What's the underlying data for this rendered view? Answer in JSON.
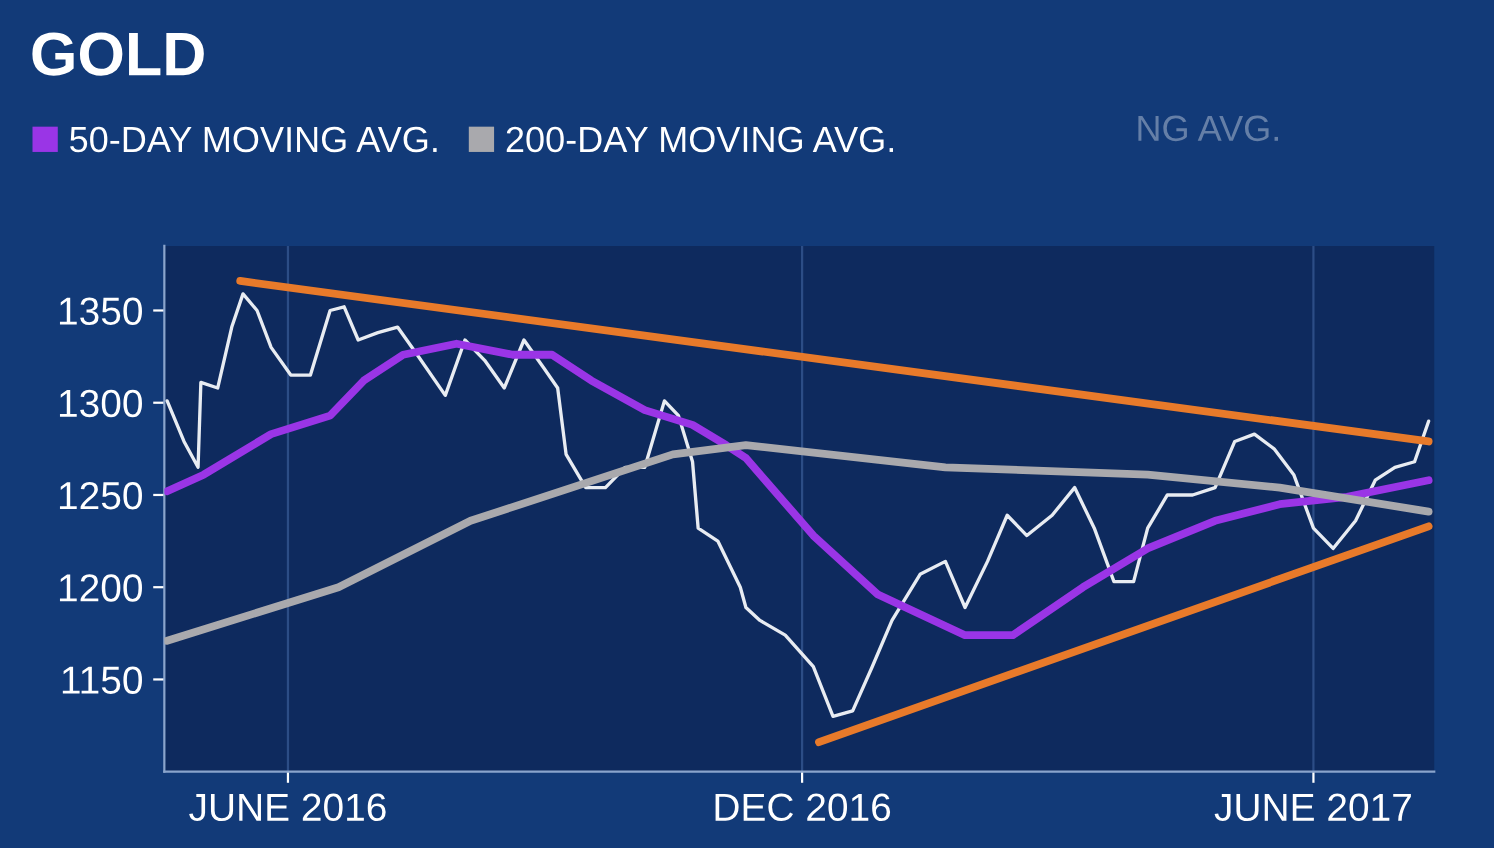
{
  "chart_data": {
    "type": "line",
    "title": "GOLD",
    "annotations": [
      "NG AVG."
    ],
    "legend": "top",
    "grid": "x",
    "marker": "none",
    "line_style": "solid",
    "xlim": [
      "2016-04-18",
      "2017-07-14"
    ],
    "ylim": [
      1100,
      1385
    ],
    "xticks": [
      {
        "value": "2016-06-01",
        "label": "JUNE 2016"
      },
      {
        "value": "2016-12-01",
        "label": "DEC 2016"
      },
      {
        "value": "2017-06-01",
        "label": "JUNE 2017"
      }
    ],
    "yticks": [
      1150,
      1200,
      1250,
      1300,
      1350
    ],
    "series": [
      {
        "color": "#e8ecf2",
        "x": [
          "2016-04-19",
          "2016-04-25",
          "2016-04-30",
          "2016-05-01",
          "2016-05-07",
          "2016-05-12",
          "2016-05-16",
          "2016-05-21",
          "2016-05-26",
          "2016-06-02",
          "2016-06-09",
          "2016-06-16",
          "2016-06-21",
          "2016-06-26",
          "2016-07-03",
          "2016-07-10",
          "2016-07-17",
          "2016-07-27",
          "2016-08-03",
          "2016-08-10",
          "2016-08-17",
          "2016-08-24",
          "2016-08-31",
          "2016-09-05",
          "2016-09-08",
          "2016-09-15",
          "2016-09-22",
          "2016-09-29",
          "2016-10-06",
          "2016-10-13",
          "2016-10-18",
          "2016-10-23",
          "2016-10-25",
          "2016-11-01",
          "2016-11-09",
          "2016-11-11",
          "2016-11-16",
          "2016-11-25",
          "2016-12-05",
          "2016-12-12",
          "2016-12-19",
          "2016-12-26",
          "2017-01-02",
          "2017-01-12",
          "2017-01-21",
          "2017-01-28",
          "2017-02-05",
          "2017-02-12",
          "2017-02-19",
          "2017-02-28",
          "2017-03-08",
          "2017-03-15",
          "2017-03-22",
          "2017-03-29",
          "2017-04-03",
          "2017-04-10",
          "2017-04-19",
          "2017-04-27",
          "2017-05-04",
          "2017-05-11",
          "2017-05-18",
          "2017-05-25",
          "2017-06-01",
          "2017-06-08",
          "2017-06-16",
          "2017-06-23",
          "2017-06-30",
          "2017-07-07",
          "2017-07-12"
        ],
        "values": [
          1301,
          1279,
          1265,
          1311,
          1308,
          1341,
          1359,
          1350,
          1330,
          1315,
          1315,
          1350,
          1352,
          1334,
          1338,
          1341,
          1326,
          1304,
          1334,
          1323,
          1308,
          1334,
          1319,
          1308,
          1272,
          1254,
          1254,
          1265,
          1265,
          1301,
          1293,
          1268,
          1232,
          1225,
          1200,
          1189,
          1182,
          1174,
          1157,
          1130,
          1133,
          1157,
          1182,
          1207,
          1214,
          1189,
          1214,
          1239,
          1228,
          1239,
          1254,
          1232,
          1203,
          1203,
          1232,
          1250,
          1250,
          1254,
          1279,
          1283,
          1275,
          1261,
          1232,
          1221,
          1236,
          1258,
          1265,
          1268,
          1290
        ]
      },
      {
        "name": "50-DAY MOVING AVG.",
        "color": "#9a35e6",
        "x": [
          "2016-04-19",
          "2016-05-02",
          "2016-05-26",
          "2016-06-16",
          "2016-06-28",
          "2016-07-12",
          "2016-07-31",
          "2016-08-20",
          "2016-09-03",
          "2016-09-17",
          "2016-10-06",
          "2016-10-23",
          "2016-11-04",
          "2016-11-11",
          "2016-12-05",
          "2016-12-28",
          "2017-01-28",
          "2017-02-14",
          "2017-03-11",
          "2017-04-03",
          "2017-04-27",
          "2017-05-20",
          "2017-06-13",
          "2017-07-12"
        ],
        "values": [
          1252,
          1261,
          1283,
          1293,
          1312,
          1326,
          1332,
          1326,
          1326,
          1312,
          1296,
          1288,
          1277,
          1270,
          1228,
          1196,
          1174,
          1174,
          1200,
          1221,
          1236,
          1245,
          1249,
          1258
        ]
      },
      {
        "name": "200-DAY MOVING AVG.",
        "color": "#a9a9ad",
        "x": [
          "2016-04-19",
          "2016-06-19",
          "2016-08-05",
          "2016-09-10",
          "2016-10-16",
          "2016-11-11",
          "2017-01-21",
          "2017-04-03",
          "2017-05-20",
          "2017-07-12"
        ],
        "values": [
          1171,
          1200,
          1236,
          1254,
          1272,
          1277,
          1265,
          1261,
          1254,
          1241
        ]
      },
      {
        "color": "#e87a2a",
        "x": [
          "2016-05-15",
          "2017-07-12"
        ],
        "values": [
          1366,
          1279
        ]
      },
      {
        "color": "#e87a2a",
        "x": [
          "2016-12-07",
          "2017-07-12"
        ],
        "values": [
          1116,
          1233
        ]
      }
    ]
  }
}
